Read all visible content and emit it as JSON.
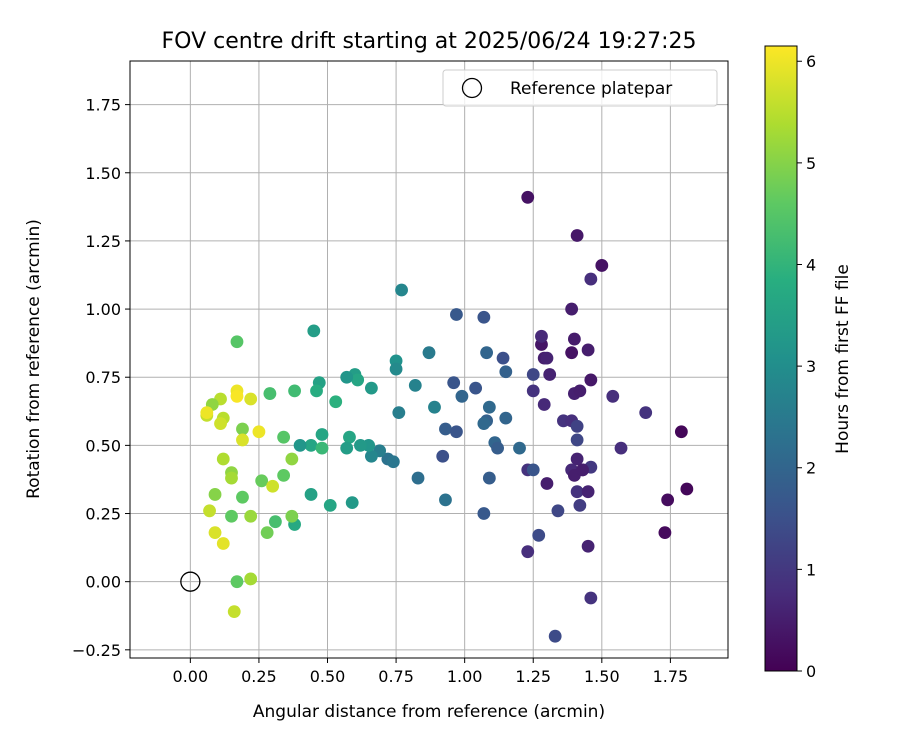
{
  "chart_data": {
    "type": "scatter",
    "title": "FOV centre drift starting at 2025/06/24 19:27:25",
    "xlabel": "Angular distance from reference (arcmin)",
    "ylabel": "Rotation from reference (arcmin)",
    "xlim": [
      -0.22,
      1.96
    ],
    "ylim": [
      -0.28,
      1.91
    ],
    "xticks": [
      0.0,
      0.25,
      0.5,
      0.75,
      1.0,
      1.25,
      1.5,
      1.75
    ],
    "xtick_labels": [
      "0.00",
      "0.25",
      "0.50",
      "0.75",
      "1.00",
      "1.25",
      "1.50",
      "1.75"
    ],
    "yticks": [
      -0.25,
      0.0,
      0.25,
      0.5,
      0.75,
      1.0,
      1.25,
      1.5,
      1.75
    ],
    "ytick_labels": [
      "−0.25",
      "0.00",
      "0.25",
      "0.50",
      "0.75",
      "1.00",
      "1.25",
      "1.50",
      "1.75"
    ],
    "grid": true,
    "legend": {
      "label": "Reference platepar",
      "placement": "top-right"
    },
    "reference_point": {
      "x": 0.0,
      "y": 0.0
    },
    "colorbar": {
      "label": "Hours from first FF file",
      "colormap": "viridis",
      "range": [
        0,
        6.15
      ],
      "ticks": [
        0,
        1,
        2,
        3,
        4,
        5,
        6
      ],
      "tick_labels": [
        "0",
        "1",
        "2",
        "3",
        "4",
        "5",
        "6"
      ]
    },
    "points": [
      {
        "x": 1.79,
        "y": 0.55,
        "c": 0.1
      },
      {
        "x": 1.74,
        "y": 0.3,
        "c": 0.2
      },
      {
        "x": 1.81,
        "y": 0.34,
        "c": 0.1
      },
      {
        "x": 1.73,
        "y": 0.18,
        "c": 0.15
      },
      {
        "x": 1.5,
        "y": 1.16,
        "c": 0.3
      },
      {
        "x": 1.41,
        "y": 1.27,
        "c": 0.4
      },
      {
        "x": 1.23,
        "y": 1.41,
        "c": 0.3
      },
      {
        "x": 1.46,
        "y": 1.11,
        "c": 0.8
      },
      {
        "x": 1.39,
        "y": 1.0,
        "c": 0.5
      },
      {
        "x": 1.28,
        "y": 0.87,
        "c": 0.35
      },
      {
        "x": 1.28,
        "y": 0.9,
        "c": 0.7
      },
      {
        "x": 1.4,
        "y": 0.89,
        "c": 0.45
      },
      {
        "x": 1.29,
        "y": 0.82,
        "c": 0.5
      },
      {
        "x": 1.3,
        "y": 0.82,
        "c": 0.6
      },
      {
        "x": 1.39,
        "y": 0.84,
        "c": 0.3
      },
      {
        "x": 1.45,
        "y": 0.85,
        "c": 0.5
      },
      {
        "x": 1.46,
        "y": 0.74,
        "c": 0.4
      },
      {
        "x": 1.4,
        "y": 0.69,
        "c": 0.55
      },
      {
        "x": 1.42,
        "y": 0.7,
        "c": 0.5
      },
      {
        "x": 1.54,
        "y": 0.68,
        "c": 0.8
      },
      {
        "x": 1.66,
        "y": 0.62,
        "c": 0.9
      },
      {
        "x": 1.25,
        "y": 0.76,
        "c": 1.3
      },
      {
        "x": 1.31,
        "y": 0.76,
        "c": 0.6
      },
      {
        "x": 1.25,
        "y": 0.7,
        "c": 0.9
      },
      {
        "x": 1.29,
        "y": 0.65,
        "c": 0.7
      },
      {
        "x": 1.36,
        "y": 0.59,
        "c": 0.9
      },
      {
        "x": 1.39,
        "y": 0.59,
        "c": 0.8
      },
      {
        "x": 1.41,
        "y": 0.57,
        "c": 1.2
      },
      {
        "x": 1.41,
        "y": 0.52,
        "c": 1.3
      },
      {
        "x": 1.57,
        "y": 0.49,
        "c": 0.8
      },
      {
        "x": 1.41,
        "y": 0.45,
        "c": 0.6
      },
      {
        "x": 1.39,
        "y": 0.41,
        "c": 0.7
      },
      {
        "x": 1.4,
        "y": 0.39,
        "c": 0.5
      },
      {
        "x": 1.43,
        "y": 0.41,
        "c": 0.6
      },
      {
        "x": 1.46,
        "y": 0.42,
        "c": 1.0
      },
      {
        "x": 1.43,
        "y": 0.41,
        "c": 0.5
      },
      {
        "x": 1.23,
        "y": 0.41,
        "c": 0.9
      },
      {
        "x": 1.25,
        "y": 0.41,
        "c": 1.6
      },
      {
        "x": 1.3,
        "y": 0.36,
        "c": 0.5
      },
      {
        "x": 1.41,
        "y": 0.33,
        "c": 0.9
      },
      {
        "x": 1.45,
        "y": 0.33,
        "c": 0.6
      },
      {
        "x": 1.42,
        "y": 0.28,
        "c": 1.1
      },
      {
        "x": 1.34,
        "y": 0.26,
        "c": 1.3
      },
      {
        "x": 1.27,
        "y": 0.17,
        "c": 1.4
      },
      {
        "x": 1.45,
        "y": 0.13,
        "c": 0.6
      },
      {
        "x": 1.23,
        "y": 0.11,
        "c": 0.8
      },
      {
        "x": 1.46,
        "y": -0.06,
        "c": 0.9
      },
      {
        "x": 1.33,
        "y": -0.2,
        "c": 1.4
      },
      {
        "x": 1.07,
        "y": 0.97,
        "c": 1.6
      },
      {
        "x": 0.97,
        "y": 0.98,
        "c": 1.7
      },
      {
        "x": 1.08,
        "y": 0.84,
        "c": 2.0
      },
      {
        "x": 1.14,
        "y": 0.82,
        "c": 1.5
      },
      {
        "x": 1.15,
        "y": 0.77,
        "c": 1.9
      },
      {
        "x": 1.04,
        "y": 0.71,
        "c": 1.6
      },
      {
        "x": 0.96,
        "y": 0.73,
        "c": 1.6
      },
      {
        "x": 0.99,
        "y": 0.68,
        "c": 2.0
      },
      {
        "x": 1.09,
        "y": 0.64,
        "c": 2.1
      },
      {
        "x": 1.15,
        "y": 0.6,
        "c": 2.0
      },
      {
        "x": 1.08,
        "y": 0.59,
        "c": 1.9
      },
      {
        "x": 1.07,
        "y": 0.58,
        "c": 2.1
      },
      {
        "x": 1.11,
        "y": 0.51,
        "c": 2.0
      },
      {
        "x": 1.12,
        "y": 0.49,
        "c": 1.8
      },
      {
        "x": 1.2,
        "y": 0.49,
        "c": 2.1
      },
      {
        "x": 0.93,
        "y": 0.56,
        "c": 1.8
      },
      {
        "x": 0.97,
        "y": 0.55,
        "c": 1.6
      },
      {
        "x": 0.92,
        "y": 0.46,
        "c": 1.5
      },
      {
        "x": 1.09,
        "y": 0.38,
        "c": 1.8
      },
      {
        "x": 1.07,
        "y": 0.25,
        "c": 1.7
      },
      {
        "x": 0.93,
        "y": 0.3,
        "c": 2.3
      },
      {
        "x": 0.83,
        "y": 0.38,
        "c": 2.2
      },
      {
        "x": 0.89,
        "y": 0.64,
        "c": 2.7
      },
      {
        "x": 0.82,
        "y": 0.72,
        "c": 2.7
      },
      {
        "x": 0.87,
        "y": 0.84,
        "c": 2.5
      },
      {
        "x": 0.77,
        "y": 1.07,
        "c": 2.8
      },
      {
        "x": 0.76,
        "y": 0.62,
        "c": 2.6
      },
      {
        "x": 0.75,
        "y": 0.81,
        "c": 3.1
      },
      {
        "x": 0.75,
        "y": 0.78,
        "c": 2.9
      },
      {
        "x": 0.72,
        "y": 0.45,
        "c": 2.3
      },
      {
        "x": 0.74,
        "y": 0.44,
        "c": 2.4
      },
      {
        "x": 0.69,
        "y": 0.48,
        "c": 2.6
      },
      {
        "x": 0.66,
        "y": 0.46,
        "c": 2.8
      },
      {
        "x": 0.65,
        "y": 0.5,
        "c": 3.2
      },
      {
        "x": 0.66,
        "y": 0.71,
        "c": 3.3
      },
      {
        "x": 0.62,
        "y": 0.5,
        "c": 3.3
      },
      {
        "x": 0.6,
        "y": 0.76,
        "c": 3.4
      },
      {
        "x": 0.61,
        "y": 0.74,
        "c": 3.6
      },
      {
        "x": 0.57,
        "y": 0.75,
        "c": 3.2
      },
      {
        "x": 0.58,
        "y": 0.53,
        "c": 3.6
      },
      {
        "x": 0.57,
        "y": 0.49,
        "c": 3.4
      },
      {
        "x": 0.59,
        "y": 0.29,
        "c": 3.3
      },
      {
        "x": 0.51,
        "y": 0.28,
        "c": 3.6
      },
      {
        "x": 0.53,
        "y": 0.66,
        "c": 3.9
      },
      {
        "x": 0.47,
        "y": 0.73,
        "c": 3.5
      },
      {
        "x": 0.46,
        "y": 0.7,
        "c": 3.8
      },
      {
        "x": 0.45,
        "y": 0.92,
        "c": 3.4
      },
      {
        "x": 0.48,
        "y": 0.54,
        "c": 3.6
      },
      {
        "x": 0.44,
        "y": 0.5,
        "c": 3.6
      },
      {
        "x": 0.48,
        "y": 0.49,
        "c": 4.1
      },
      {
        "x": 0.4,
        "y": 0.5,
        "c": 3.2
      },
      {
        "x": 0.38,
        "y": 0.7,
        "c": 4.2
      },
      {
        "x": 0.44,
        "y": 0.32,
        "c": 3.5
      },
      {
        "x": 0.38,
        "y": 0.21,
        "c": 3.7
      },
      {
        "x": 0.29,
        "y": 0.69,
        "c": 4.3
      },
      {
        "x": 0.34,
        "y": 0.53,
        "c": 4.5
      },
      {
        "x": 0.37,
        "y": 0.45,
        "c": 5.1
      },
      {
        "x": 0.34,
        "y": 0.39,
        "c": 4.6
      },
      {
        "x": 0.26,
        "y": 0.37,
        "c": 4.7
      },
      {
        "x": 0.37,
        "y": 0.24,
        "c": 4.9
      },
      {
        "x": 0.31,
        "y": 0.22,
        "c": 4.3
      },
      {
        "x": 0.28,
        "y": 0.18,
        "c": 4.8
      },
      {
        "x": 0.3,
        "y": 0.35,
        "c": 5.7
      },
      {
        "x": 0.25,
        "y": 0.55,
        "c": 6.0
      },
      {
        "x": 0.22,
        "y": 0.67,
        "c": 5.8
      },
      {
        "x": 0.17,
        "y": 0.7,
        "c": 6.0
      },
      {
        "x": 0.17,
        "y": 0.68,
        "c": 6.1
      },
      {
        "x": 0.17,
        "y": 0.88,
        "c": 4.5
      },
      {
        "x": 0.19,
        "y": 0.56,
        "c": 4.9
      },
      {
        "x": 0.19,
        "y": 0.52,
        "c": 5.8
      },
      {
        "x": 0.19,
        "y": 0.31,
        "c": 4.6
      },
      {
        "x": 0.22,
        "y": 0.24,
        "c": 5.2
      },
      {
        "x": 0.15,
        "y": 0.4,
        "c": 5.1
      },
      {
        "x": 0.15,
        "y": 0.38,
        "c": 5.3
      },
      {
        "x": 0.15,
        "y": 0.24,
        "c": 4.6
      },
      {
        "x": 0.12,
        "y": 0.45,
        "c": 5.4
      },
      {
        "x": 0.09,
        "y": 0.32,
        "c": 5.0
      },
      {
        "x": 0.07,
        "y": 0.26,
        "c": 5.6
      },
      {
        "x": 0.09,
        "y": 0.18,
        "c": 5.8
      },
      {
        "x": 0.12,
        "y": 0.14,
        "c": 5.9
      },
      {
        "x": 0.12,
        "y": 0.6,
        "c": 5.5
      },
      {
        "x": 0.11,
        "y": 0.58,
        "c": 5.7
      },
      {
        "x": 0.11,
        "y": 0.67,
        "c": 5.5
      },
      {
        "x": 0.08,
        "y": 0.65,
        "c": 5.1
      },
      {
        "x": 0.06,
        "y": 0.61,
        "c": 5.6
      },
      {
        "x": 0.06,
        "y": 0.62,
        "c": 6.0
      },
      {
        "x": 0.17,
        "y": 0.0,
        "c": 4.6
      },
      {
        "x": 0.22,
        "y": 0.01,
        "c": 5.3
      },
      {
        "x": 0.16,
        "y": -0.11,
        "c": 5.6
      }
    ]
  }
}
